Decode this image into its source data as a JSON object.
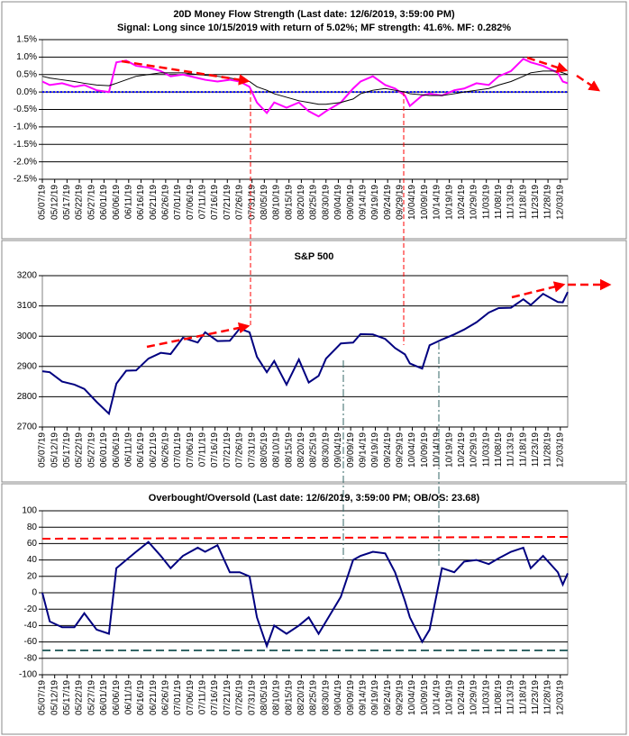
{
  "chart_data": [
    {
      "type": "line",
      "title": "20D Money Flow Strength (Last date: 12/6/2019, 3:59:00 PM)",
      "subtitle": "Signal: Long since 10/15/2019 with return of 5.02%; MF strength: 41.6%. MF: 0.282%",
      "x": [
        "05/07/19",
        "05/10/19",
        "05/15/19",
        "05/20/19",
        "05/24/19",
        "05/29/19",
        "06/03/19",
        "06/06/19",
        "06/10/19",
        "06/14/19",
        "06/19/19",
        "06/24/19",
        "06/28/19",
        "07/03/19",
        "07/09/19",
        "07/12/19",
        "07/17/19",
        "07/22/19",
        "07/26/19",
        "07/30/19",
        "08/02/19",
        "08/06/19",
        "08/09/19",
        "08/14/19",
        "08/19/19",
        "08/23/19",
        "08/27/19",
        "08/30/19",
        "09/05/19",
        "09/10/19",
        "09/13/19",
        "09/18/19",
        "09/23/19",
        "09/27/19",
        "10/01/19",
        "10/03/19",
        "10/08/19",
        "10/11/19",
        "10/16/19",
        "10/21/19",
        "10/25/19",
        "10/30/19",
        "11/04/19",
        "11/08/19",
        "11/13/19",
        "11/18/19",
        "11/21/19",
        "11/26/19",
        "12/02/19",
        "12/04/19",
        "12/06/19"
      ],
      "series": [
        {
          "color": "#ff00ff",
          "values": [
            0.3,
            0.2,
            0.25,
            0.15,
            0.2,
            0.05,
            0.0,
            0.85,
            0.9,
            0.75,
            0.7,
            0.6,
            0.45,
            0.5,
            0.4,
            0.35,
            0.3,
            0.35,
            0.3,
            0.15,
            -0.3,
            -0.6,
            -0.3,
            -0.45,
            -0.3,
            -0.55,
            -0.7,
            -0.55,
            -0.3,
            0.1,
            0.3,
            0.45,
            0.2,
            0.1,
            -0.1,
            -0.4,
            -0.1,
            -0.05,
            -0.1,
            0.05,
            0.1,
            0.25,
            0.2,
            0.45,
            0.6,
            0.95,
            0.85,
            0.75,
            0.55,
            0.3,
            0.25
          ]
        },
        {
          "color": "#000000",
          "values": [
            0.45,
            0.4,
            0.35,
            0.3,
            0.25,
            0.2,
            0.18,
            0.25,
            0.35,
            0.45,
            0.5,
            0.55,
            0.55,
            0.55,
            0.5,
            0.48,
            0.45,
            0.4,
            0.35,
            0.3,
            0.15,
            0.05,
            -0.05,
            -0.15,
            -0.25,
            -0.3,
            -0.35,
            -0.35,
            -0.3,
            -0.2,
            -0.05,
            0.05,
            0.1,
            0.05,
            0.0,
            -0.05,
            -0.08,
            -0.1,
            -0.1,
            -0.05,
            0.0,
            0.05,
            0.1,
            0.2,
            0.3,
            0.45,
            0.55,
            0.6,
            0.6,
            0.55,
            0.5
          ]
        }
      ],
      "xlim": [
        "05/07/19",
        "12/06/19"
      ],
      "xticks": [
        "05/07/19",
        "05/12/19",
        "05/17/19",
        "05/22/19",
        "05/27/19",
        "06/01/19",
        "06/06/19",
        "06/11/19",
        "06/16/19",
        "06/21/19",
        "06/26/19",
        "07/01/19",
        "07/06/19",
        "07/11/19",
        "07/16/19",
        "07/21/19",
        "07/26/19",
        "07/31/19",
        "08/05/19",
        "08/10/19",
        "08/15/19",
        "08/20/19",
        "08/25/19",
        "08/30/19",
        "09/04/19",
        "09/09/19",
        "09/14/19",
        "09/19/19",
        "09/24/19",
        "09/29/19",
        "10/04/19",
        "10/09/19",
        "10/14/19",
        "10/19/19",
        "10/24/19",
        "10/29/19",
        "11/03/19",
        "11/08/19",
        "11/13/19",
        "11/18/19",
        "11/23/19",
        "11/28/19",
        "12/03/19"
      ],
      "ylim": [
        -2.5,
        1.5
      ],
      "yticks": [
        {
          "value": 1.5,
          "label": "1.5%"
        },
        {
          "value": 1.0,
          "label": "1.0%"
        },
        {
          "value": 0.5,
          "label": "0.5%"
        },
        {
          "value": 0.0,
          "label": "0.0%"
        },
        {
          "value": -0.5,
          "label": "-0.5%"
        },
        {
          "value": -1.0,
          "label": "-1.0%"
        },
        {
          "value": -1.5,
          "label": "-1.5%"
        },
        {
          "value": -2.0,
          "label": "-2.0%"
        },
        {
          "value": -2.5,
          "label": "-2.5%"
        }
      ],
      "grid": true
    },
    {
      "type": "line",
      "title": "S&P 500",
      "x": [
        "05/07/19",
        "05/10/19",
        "05/15/19",
        "05/20/19",
        "05/24/19",
        "05/29/19",
        "06/03/19",
        "06/06/19",
        "06/10/19",
        "06/14/19",
        "06/19/19",
        "06/24/19",
        "06/28/19",
        "07/03/19",
        "07/09/19",
        "07/12/19",
        "07/17/19",
        "07/22/19",
        "07/26/19",
        "07/30/19",
        "08/02/19",
        "08/06/19",
        "08/09/19",
        "08/14/19",
        "08/19/19",
        "08/23/19",
        "08/27/19",
        "08/30/19",
        "09/05/19",
        "09/10/19",
        "09/13/19",
        "09/18/19",
        "09/23/19",
        "09/27/19",
        "10/01/19",
        "10/03/19",
        "10/08/19",
        "10/11/19",
        "10/16/19",
        "10/21/19",
        "10/25/19",
        "10/30/19",
        "11/04/19",
        "11/08/19",
        "11/13/19",
        "11/18/19",
        "11/21/19",
        "11/26/19",
        "12/02/19",
        "12/04/19",
        "12/06/19"
      ],
      "series": [
        {
          "color": "#000080",
          "values": [
            2884,
            2881,
            2850,
            2840,
            2826,
            2783,
            2744,
            2843,
            2886,
            2887,
            2926,
            2945,
            2941,
            2995,
            2979,
            3013,
            2984,
            2985,
            3025,
            3013,
            2932,
            2881,
            2918,
            2840,
            2923,
            2847,
            2869,
            2926,
            2976,
            2979,
            3007,
            3006,
            2991,
            2961,
            2940,
            2910,
            2893,
            2970,
            2989,
            3006,
            3022,
            3046,
            3078,
            3093,
            3094,
            3122,
            3103,
            3140,
            3113,
            3112,
            3146
          ]
        }
      ],
      "xlim": [
        "05/07/19",
        "12/06/19"
      ],
      "xticks": [
        "05/07/19",
        "05/12/19",
        "05/17/19",
        "05/22/19",
        "05/27/19",
        "06/01/19",
        "06/06/19",
        "06/11/19",
        "06/16/19",
        "06/21/19",
        "06/26/19",
        "07/01/19",
        "07/06/19",
        "07/11/19",
        "07/16/19",
        "07/21/19",
        "07/26/19",
        "07/31/19",
        "08/05/19",
        "08/10/19",
        "08/15/19",
        "08/20/19",
        "08/25/19",
        "08/30/19",
        "09/04/19",
        "09/09/19",
        "09/14/19",
        "09/19/19",
        "09/24/19",
        "09/29/19",
        "10/04/19",
        "10/09/19",
        "10/14/19",
        "10/19/19",
        "10/24/19",
        "10/29/19",
        "11/03/19",
        "11/08/19",
        "11/13/19",
        "11/18/19",
        "11/23/19",
        "11/28/19",
        "12/03/19"
      ],
      "ylim": [
        2700,
        3200
      ],
      "yticks": [
        3200,
        3100,
        3000,
        2900,
        2800,
        2700
      ],
      "grid": true
    },
    {
      "type": "line",
      "title": "Overbought/Oversold (Last date: 12/6/2019, 3:59:00 PM; OB/OS: 23.68)",
      "x": [
        "05/07/19",
        "05/10/19",
        "05/15/19",
        "05/20/19",
        "05/24/19",
        "05/29/19",
        "06/03/19",
        "06/06/19",
        "06/10/19",
        "06/14/19",
        "06/19/19",
        "06/24/19",
        "06/28/19",
        "07/03/19",
        "07/09/19",
        "07/12/19",
        "07/17/19",
        "07/22/19",
        "07/26/19",
        "07/30/19",
        "08/02/19",
        "08/06/19",
        "08/09/19",
        "08/14/19",
        "08/19/19",
        "08/23/19",
        "08/27/19",
        "08/30/19",
        "09/05/19",
        "09/10/19",
        "09/13/19",
        "09/18/19",
        "09/23/19",
        "09/27/19",
        "10/01/19",
        "10/03/19",
        "10/08/19",
        "10/11/19",
        "10/16/19",
        "10/21/19",
        "10/25/19",
        "10/30/19",
        "11/04/19",
        "11/08/19",
        "11/13/19",
        "11/18/19",
        "11/21/19",
        "11/26/19",
        "12/02/19",
        "12/04/19",
        "12/06/19"
      ],
      "series": [
        {
          "color": "#000080",
          "values": [
            0,
            -35,
            -42,
            -42,
            -25,
            -45,
            -50,
            30,
            40,
            50,
            62,
            45,
            30,
            45,
            55,
            50,
            58,
            25,
            25,
            20,
            -30,
            -65,
            -40,
            -50,
            -40,
            -30,
            -50,
            -35,
            -5,
            40,
            45,
            50,
            48,
            25,
            -10,
            -30,
            -60,
            -45,
            30,
            25,
            38,
            40,
            35,
            42,
            50,
            55,
            30,
            45,
            25,
            10,
            23.68
          ]
        }
      ],
      "xlim": [
        "05/07/19",
        "12/06/19"
      ],
      "xticks": [
        "05/07/19",
        "05/12/19",
        "05/17/19",
        "05/22/19",
        "05/27/19",
        "06/01/19",
        "06/06/19",
        "06/11/19",
        "06/16/19",
        "06/21/19",
        "06/26/19",
        "07/01/19",
        "07/06/19",
        "07/11/19",
        "07/16/19",
        "07/21/19",
        "07/26/19",
        "07/31/19",
        "08/05/19",
        "08/10/19",
        "08/15/19",
        "08/20/19",
        "08/25/19",
        "08/30/19",
        "09/04/19",
        "09/09/19",
        "09/14/19",
        "09/19/19",
        "09/24/19",
        "09/29/19",
        "10/04/19",
        "10/09/19",
        "10/14/19",
        "10/19/19",
        "10/24/19",
        "10/29/19",
        "11/03/19",
        "11/08/19",
        "11/13/19",
        "11/18/19",
        "11/23/19",
        "11/28/19",
        "12/03/19"
      ],
      "ylim": [
        -100,
        100
      ],
      "yticks": [
        100,
        80,
        60,
        40,
        20,
        0,
        -20,
        -40,
        -60,
        -80,
        -100
      ],
      "grid": true
    }
  ]
}
